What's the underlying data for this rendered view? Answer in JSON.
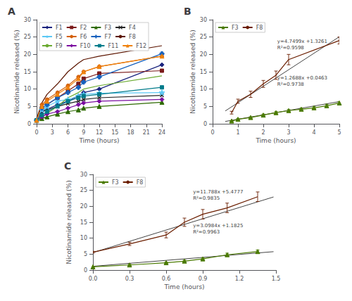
{
  "chart_data": [
    {
      "type": "line",
      "title": "A",
      "xlabel": "Time (hours)",
      "ylabel": "Nicotinamide released (%)",
      "xlim": [
        0,
        24
      ],
      "ylim": [
        0,
        30
      ],
      "xticks": [
        0,
        3,
        6,
        9,
        12,
        15,
        18,
        21,
        24
      ],
      "yticks": [
        0,
        5,
        10,
        15,
        20,
        25,
        30
      ],
      "grid": false,
      "legend": "upper left",
      "x": [
        0,
        1,
        2,
        4,
        6,
        8,
        9,
        12,
        24
      ],
      "series": [
        {
          "name": "F1",
          "color": "#1a237e",
          "marker": "diamond",
          "values": [
            1.0,
            3.5,
            4.2,
            5.5,
            6.5,
            8.0,
            9.0,
            10.0,
            17.0
          ]
        },
        {
          "name": "F2",
          "color": "#7b1a1a",
          "marker": "square",
          "values": [
            1.0,
            4.5,
            5.5,
            7.5,
            9.5,
            11.5,
            13.0,
            14.5,
            15.3
          ]
        },
        {
          "name": "F3",
          "color": "#2e6b00",
          "marker": "triangle",
          "values": [
            1.0,
            1.5,
            2.0,
            2.8,
            3.5,
            4.0,
            4.5,
            5.0,
            6.2
          ]
        },
        {
          "name": "F4",
          "color": "#222222",
          "marker": "x",
          "values": [
            1.0,
            3.5,
            4.0,
            5.0,
            5.8,
            6.5,
            7.0,
            7.5,
            8.2
          ]
        },
        {
          "name": "F5",
          "color": "#5bc8f5",
          "marker": "star",
          "values": [
            1.0,
            4.0,
            5.0,
            6.5,
            7.0,
            8.0,
            8.5,
            8.8,
            9.0
          ]
        },
        {
          "name": "F6",
          "color": "#d4600a",
          "marker": "circle",
          "values": [
            1.0,
            5.5,
            7.0,
            9.0,
            11.0,
            13.5,
            15.0,
            16.5,
            19.5
          ]
        },
        {
          "name": "F7",
          "color": "#1560bd",
          "marker": "plus",
          "values": [
            1.0,
            4.5,
            5.5,
            7.5,
            9.0,
            10.5,
            12.0,
            13.5,
            20.2
          ]
        },
        {
          "name": "F8",
          "color": "#5c1500",
          "marker": "none",
          "values": [
            1.5,
            6.0,
            8.5,
            11.5,
            15.0,
            17.5,
            18.5,
            19.5,
            22.5
          ]
        },
        {
          "name": "F9",
          "color": "#6aaa30",
          "marker": "none",
          "values": [
            1.0,
            2.0,
            3.0,
            5.0,
            7.5,
            9.0,
            10.0,
            11.0,
            13.8
          ]
        },
        {
          "name": "F10",
          "color": "#7b0fa0",
          "marker": "diamond",
          "values": [
            1.0,
            2.0,
            2.8,
            3.5,
            4.5,
            5.5,
            6.0,
            6.5,
            7.0
          ]
        },
        {
          "name": "F11",
          "color": "#007b8a",
          "marker": "square",
          "values": [
            1.0,
            2.5,
            3.5,
            5.0,
            6.5,
            7.5,
            8.0,
            8.5,
            10.5
          ]
        },
        {
          "name": "F12",
          "color": "#f0820d",
          "marker": "triangle",
          "values": [
            1.0,
            5.0,
            6.5,
            8.5,
            10.5,
            13.0,
            15.0,
            16.5,
            19.5
          ]
        }
      ]
    },
    {
      "type": "line",
      "title": "B",
      "xlabel": "Time (hours)",
      "ylabel": "Nicotinamide released (%)",
      "xlim": [
        0,
        5
      ],
      "ylim": [
        0,
        30
      ],
      "xticks": [
        0,
        1,
        2,
        3,
        4,
        5
      ],
      "yticks": [
        0,
        5,
        10,
        15,
        20,
        25,
        30
      ],
      "grid": false,
      "legend": "upper left",
      "series": [
        {
          "name": "F3",
          "color": "#4a7a00",
          "marker": "triangle",
          "x": [
            0.75,
            1.0,
            1.5,
            2.0,
            2.5,
            3.0,
            3.5,
            4.0,
            4.5,
            5.0
          ],
          "values": [
            0.8,
            1.3,
            1.8,
            2.5,
            3.2,
            3.8,
            4.2,
            4.6,
            5.2,
            6.0
          ],
          "errors": [
            0.1,
            0.2,
            0.2,
            0.3,
            0.3,
            0.3,
            0.3,
            0.3,
            0.4,
            0.4
          ]
        },
        {
          "name": "F8",
          "color": "#6b1e00",
          "marker": "none",
          "x": [
            0.75,
            1.0,
            1.5,
            2.0,
            2.5,
            3.0,
            5.0
          ],
          "values": [
            3.2,
            6.5,
            8.5,
            11.5,
            14.0,
            18.5,
            24.0
          ],
          "errors": [
            0.4,
            0.6,
            0.9,
            1.0,
            1.2,
            1.5,
            1.0
          ]
        },
        {
          "color": "#444444",
          "marker": "none",
          "x": [
            0.5,
            5
          ],
          "values": [
            3.70105,
            25.0756
          ]
        },
        {
          "color": "#444444",
          "marker": "none",
          "x": [
            0.5,
            5
          ],
          "values": [
            0.6807,
            6.3903
          ]
        }
      ],
      "annotations": [
        {
          "text": "y=4.7499x +1.3261\nR²=0.9598",
          "x": 2.55,
          "y": 21.0
        },
        {
          "text": "y=1.2688x +0.0463\nR²=0.9738",
          "x": 2.55,
          "y": 10.5
        }
      ]
    },
    {
      "type": "line",
      "title": "C",
      "xlabel": "Time (hours)",
      "ylabel": "Nicotinamide released (%)",
      "xlim": [
        0.0,
        1.5
      ],
      "ylim": [
        0,
        30
      ],
      "xticks": [
        {
          "value": 0.0,
          "label": "0.0"
        },
        0.3,
        0.6,
        0.9,
        1.2,
        1.5
      ],
      "yticks": [
        0,
        5,
        10,
        15,
        20,
        25,
        30
      ],
      "grid": false,
      "legend": "upper left",
      "series": [
        {
          "name": "F3",
          "color": "#4a7a00",
          "marker": "triangle",
          "x": [
            0.0,
            0.3,
            0.6,
            0.75,
            0.9,
            1.1,
            1.35
          ],
          "values": [
            1.0,
            1.6,
            2.3,
            2.8,
            3.5,
            4.8,
            5.8
          ],
          "errors": [
            0.1,
            0.2,
            0.2,
            0.3,
            0.3,
            0.5,
            0.5
          ]
        },
        {
          "name": "F8",
          "color": "#6b1e00",
          "marker": "none",
          "x": [
            0.0,
            0.3,
            0.6,
            0.75,
            0.9,
            1.1,
            1.35
          ],
          "values": [
            5.6,
            8.2,
            11.0,
            15.0,
            17.5,
            19.5,
            23.0
          ],
          "errors": [
            0.3,
            0.5,
            0.9,
            1.3,
            1.5,
            1.5,
            1.5
          ]
        },
        {
          "color": "#444444",
          "marker": "none",
          "x": [
            0,
            1.48
          ],
          "values": [
            5.4777,
            22.92394
          ]
        },
        {
          "color": "#444444",
          "marker": "none",
          "x": [
            0,
            1.48
          ],
          "values": [
            1.1825,
            5.768132
          ]
        }
      ],
      "annotations": [
        {
          "text": "y=11.788x +5.4777\nR²=0.9835",
          "x": 0.82,
          "y": 21.5
        },
        {
          "text": "y=3.0984x +1.1825\nR²=0.9963",
          "x": 0.82,
          "y": 11.0
        }
      ]
    }
  ]
}
